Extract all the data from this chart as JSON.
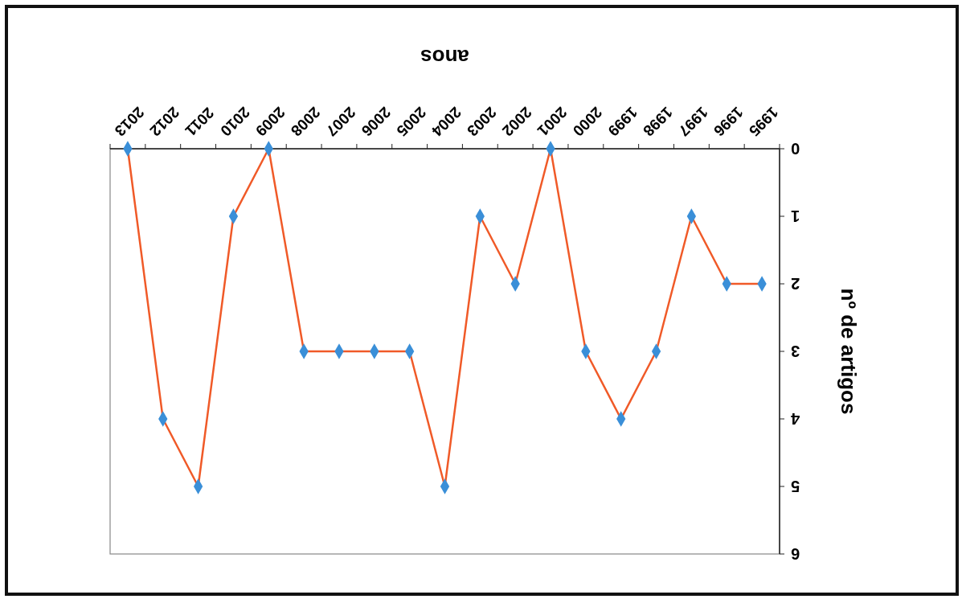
{
  "chart_data": {
    "type": "line",
    "xlabel": "anos",
    "ylabel": "nº de artigos",
    "categories": [
      "2013",
      "2012",
      "2011",
      "2010",
      "2009",
      "2008",
      "2007",
      "2006",
      "2005",
      "2004",
      "2003",
      "2002",
      "2001",
      "2000",
      "1999",
      "1998",
      "1997",
      "1996",
      "1995"
    ],
    "series": [
      {
        "color": "#f05a28",
        "values": [
          0,
          4,
          5,
          1,
          0,
          3,
          3,
          3,
          3,
          5,
          1,
          2,
          0,
          3,
          4,
          3,
          1,
          2,
          2
        ]
      }
    ],
    "ylim": [
      6,
      0
    ],
    "yticks": [
      0,
      1,
      2,
      3,
      4,
      5,
      6
    ],
    "grid": false,
    "marker": "diamond",
    "line_style": "solid"
  }
}
